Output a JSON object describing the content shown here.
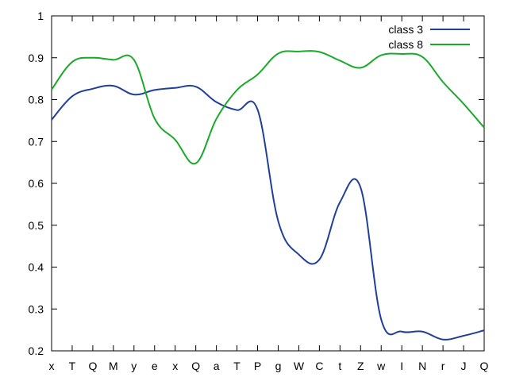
{
  "chart_data": {
    "type": "line",
    "categories": [
      "x",
      "T",
      "Q",
      "M",
      "y",
      "e",
      "x",
      "Q",
      "a",
      "T",
      "P",
      "g",
      "W",
      "C",
      "t",
      "Z",
      "w",
      "I",
      "N",
      "r",
      "J",
      "Q"
    ],
    "y_ticks": [
      "1",
      "0.9",
      "0.8",
      "0.7",
      "0.6",
      "0.5",
      "0.4",
      "0.3",
      "0.2"
    ],
    "ylim": [
      0.2,
      1.0
    ],
    "legend_position": "top-right",
    "grid": false,
    "series": [
      {
        "name": "class 3",
        "color": "#1f3f99",
        "values": [
          0.752,
          0.808,
          0.826,
          0.833,
          0.812,
          0.823,
          0.828,
          0.831,
          0.794,
          0.775,
          0.776,
          0.51,
          0.43,
          0.418,
          0.555,
          0.59,
          0.275,
          0.246,
          0.246,
          0.227,
          0.236,
          0.249
        ]
      },
      {
        "name": "class 8",
        "color": "#1aaa2a",
        "values": [
          0.824,
          0.89,
          0.9,
          0.895,
          0.895,
          0.755,
          0.704,
          0.648,
          0.754,
          0.823,
          0.86,
          0.91,
          0.915,
          0.914,
          0.893,
          0.876,
          0.906,
          0.909,
          0.902,
          0.842,
          0.79,
          0.733
        ]
      }
    ]
  }
}
